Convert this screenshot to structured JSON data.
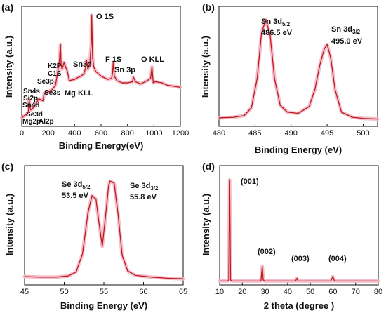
{
  "panels": [
    {
      "label": "(a)",
      "chart_data": {
        "type": "line",
        "xlabel": "Binding Energy(eV)",
        "ylabel": "Intensity (a.u.)",
        "xlim": [
          0,
          1200
        ],
        "xticks": [
          0,
          200,
          400,
          600,
          800,
          1000,
          1200
        ],
        "ylim": [
          0,
          100
        ],
        "series_color": "#c0181b",
        "halo_color": "#f2b8c6",
        "x": [
          0,
          20,
          35,
          50,
          57,
          60,
          68,
          80,
          100,
          130,
          160,
          170,
          200,
          230,
          255,
          270,
          285,
          293,
          298,
          305,
          320,
          345,
          360,
          400,
          430,
          450,
          470,
          485,
          490,
          500,
          515,
          525,
          529,
          532,
          536,
          545,
          560,
          600,
          650,
          680,
          686,
          692,
          700,
          720,
          760,
          800,
          838,
          845,
          860,
          900,
          950,
          975,
          985,
          995,
          1010,
          1060,
          1100,
          1150,
          1200
        ],
        "y": [
          5,
          7,
          8,
          10,
          22,
          15,
          12,
          13,
          16,
          22,
          20,
          27,
          28,
          30,
          34,
          44,
          56,
          70,
          52,
          48,
          54,
          46,
          38,
          39,
          41,
          42,
          44,
          50,
          56,
          48,
          53,
          70,
          96,
          80,
          58,
          50,
          46,
          42,
          39,
          40,
          44,
          54,
          42,
          38,
          36,
          36,
          37,
          41,
          37,
          35,
          38,
          40,
          50,
          36,
          37,
          36,
          34,
          33,
          32
        ],
        "annotations": [
          "O 1S",
          "F 1S",
          "Sn 3p",
          "O KLL",
          "Sn3d",
          "Mg KLL",
          "K2P",
          "C1S",
          "Se3p",
          "Se3s",
          "Sn4s",
          "Si2p",
          "Sn4d",
          "Se3d",
          "Mg2p",
          "Al2p"
        ]
      }
    },
    {
      "label": "(b)",
      "chart_data": {
        "type": "line",
        "xlabel": "Binding Energy (eV)",
        "ylabel": "Intensity (a.u.)",
        "xlim": [
          480,
          502
        ],
        "xticks": [
          480,
          485,
          490,
          495,
          500
        ],
        "ylim": [
          0,
          100
        ],
        "series_color": "#c0181b",
        "halo_color": "#f2b8c6",
        "x": [
          480,
          482,
          483.5,
          484.5,
          485.3,
          485.9,
          486.5,
          487.1,
          487.7,
          488.5,
          489.5,
          491,
          492.5,
          493.3,
          494,
          494.6,
          495,
          495.5,
          496.1,
          497,
          498.5,
          500,
          502
        ],
        "y": [
          5,
          5.5,
          7,
          14,
          40,
          80,
          92,
          78,
          40,
          16,
          10,
          9,
          15,
          30,
          52,
          66,
          70,
          58,
          30,
          10,
          5.5,
          4.5,
          4
        ],
        "annotations": [
          {
            "title": "Sn 3d",
            "sub": "5/2",
            "value": "486.5 eV"
          },
          {
            "title": "Sn 3d",
            "sub": "3/2",
            "value": "495.0 eV"
          }
        ]
      }
    },
    {
      "label": "(c)",
      "chart_data": {
        "type": "line",
        "xlabel": "Binding Energy (eV)",
        "ylabel": "Intensity (a.u.)",
        "xlim": [
          45,
          65
        ],
        "xticks": [
          45,
          50,
          55,
          60,
          65
        ],
        "ylim": [
          0,
          100
        ],
        "series_color": "#c0181b",
        "halo_color": "#f2b8c6",
        "x": [
          45,
          47,
          49,
          50.5,
          51.5,
          52.3,
          53,
          53.5,
          54,
          54.4,
          54.8,
          55.2,
          55.6,
          55.8,
          56.3,
          56.8,
          57.3,
          58,
          59,
          61,
          63,
          65
        ],
        "y": [
          5,
          4.5,
          4.5,
          5.5,
          9,
          25,
          62,
          77,
          74,
          52,
          32,
          58,
          86,
          90,
          88,
          60,
          24,
          10,
          6,
          4.5,
          3.5,
          3
        ],
        "annotations": [
          {
            "title": "Se 3d",
            "sub": "5/2",
            "value": "53.5 eV"
          },
          {
            "title": "Se 3d",
            "sub": "3/2",
            "value": "55.8 eV"
          }
        ]
      }
    },
    {
      "label": "(d)",
      "chart_data": {
        "type": "line",
        "xlabel": "2 theta (degree )",
        "ylabel": "Intensity (a.u.)",
        "xlim": [
          10,
          80
        ],
        "xticks": [
          10,
          20,
          30,
          40,
          50,
          60,
          70,
          80
        ],
        "ylim": [
          0,
          100
        ],
        "series_color": "#c0181b",
        "halo_color": "#f2b8c6",
        "x": [
          10,
          13.5,
          14.0,
          14.4,
          14.8,
          15.4,
          28.2,
          28.8,
          29.2,
          29.8,
          43.5,
          44.1,
          44.6,
          59.1,
          59.9,
          60.7,
          80
        ],
        "y": [
          1,
          1,
          2,
          91,
          2,
          1,
          1,
          14,
          2,
          1,
          1,
          3.5,
          1,
          1,
          5,
          1,
          1
        ],
        "annotations": [
          "(001)",
          "(002)",
          "(003)",
          "(004)"
        ]
      }
    }
  ]
}
